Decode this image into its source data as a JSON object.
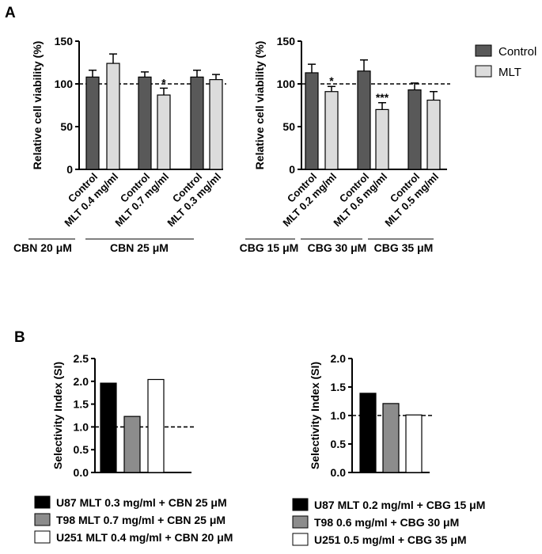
{
  "panel_labels": {
    "a": "A",
    "b": "B"
  },
  "legend_top": [
    {
      "label": "Control",
      "color": "#595959"
    },
    {
      "label": "MLT",
      "color": "#dcdcdc"
    }
  ],
  "chart_data": [
    {
      "type": "bar",
      "panel": "A",
      "ylabel": "Relative cell viability (%)",
      "ylim": [
        0,
        150
      ],
      "yticks": [
        "0",
        "50",
        "100",
        "150"
      ],
      "reference_line": 100,
      "categories": [
        "Control",
        "MLT 0.4 mg/ml",
        "Control",
        "MLT 0.7 mg/ml",
        "Control",
        "MLT 0.3 mg/ml"
      ],
      "values": [
        108,
        124,
        108,
        87,
        108,
        105
      ],
      "errors": [
        8,
        11,
        6,
        8,
        8,
        6
      ],
      "series_of_bar": [
        "Control",
        "MLT",
        "Control",
        "MLT",
        "Control",
        "MLT"
      ],
      "significance": [
        "",
        "",
        "",
        "*",
        "",
        ""
      ],
      "groups": [
        {
          "label": "CBN 20 μM",
          "bars": [
            0,
            1
          ]
        },
        {
          "label": "CBN 25 μM",
          "bars": [
            2,
            5
          ]
        }
      ]
    },
    {
      "type": "bar",
      "panel": "A",
      "ylabel": "Relative cell viability (%)",
      "ylim": [
        0,
        150
      ],
      "yticks": [
        "0",
        "50",
        "100",
        "150"
      ],
      "reference_line": 100,
      "categories": [
        "Control",
        "MLT 0.2 mg/ml",
        "Control",
        "MLT 0.6 mg/ml",
        "Control",
        "MLT 0.5 mg/ml"
      ],
      "values": [
        113,
        91,
        115,
        70,
        93,
        81
      ],
      "errors": [
        10,
        6,
        13,
        8,
        8,
        10
      ],
      "series_of_bar": [
        "Control",
        "MLT",
        "Control",
        "MLT",
        "Control",
        "MLT"
      ],
      "significance": [
        "",
        "*",
        "",
        "***",
        "",
        ""
      ],
      "groups": [
        {
          "label": "CBG 15 μM",
          "bars": [
            0,
            1
          ]
        },
        {
          "label": "CBG 30 μM",
          "bars": [
            2,
            3
          ]
        },
        {
          "label": "CBG 35 μM",
          "bars": [
            4,
            5
          ]
        }
      ]
    },
    {
      "type": "bar",
      "panel": "B",
      "ylabel": "Selectivity Index (SI)",
      "ylim": [
        0,
        2.5
      ],
      "yticks": [
        "0.0",
        "0.5",
        "1.0",
        "1.5",
        "2.0",
        "2.5"
      ],
      "reference_line": 1.0,
      "values": [
        1.96,
        1.23,
        2.04
      ],
      "colors": [
        "#000000",
        "#8c8c8c",
        "#ffffff"
      ],
      "legend": [
        "U87 MLT 0.3 mg/ml + CBN 25 μM",
        "T98 MLT 0.7 mg/ml + CBN 25 μM",
        "U251 MLT 0.4 mg/ml + CBN 20 μM"
      ]
    },
    {
      "type": "bar",
      "panel": "B",
      "ylabel": "Selectivity Index (SI)",
      "ylim": [
        0,
        2.0
      ],
      "yticks": [
        "0.0",
        "0.5",
        "1.0",
        "1.5",
        "2.0"
      ],
      "reference_line": 1.0,
      "values": [
        1.39,
        1.21,
        1.01
      ],
      "colors": [
        "#000000",
        "#8c8c8c",
        "#ffffff"
      ],
      "legend": [
        "U87 MLT 0.2 mg/ml + CBG 15 μM",
        "T98 0.6 mg/ml + CBG 30 μM",
        "U251 0.5 mg/ml + CBG 35 μM"
      ]
    }
  ]
}
